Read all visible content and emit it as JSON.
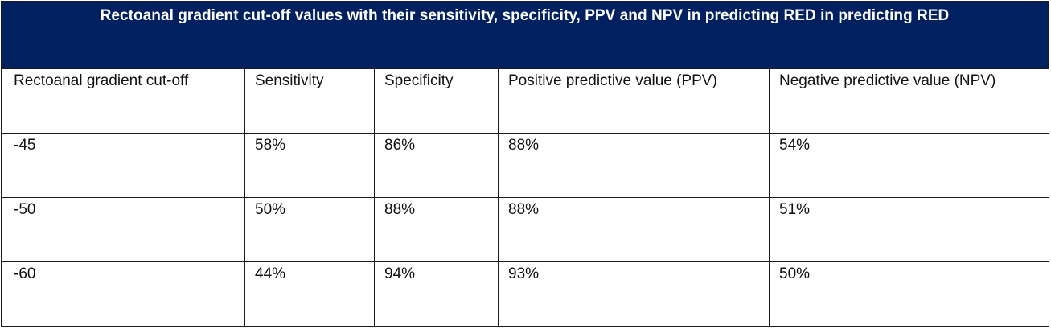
{
  "title": "Rectoanal gradient cut-off values with their sensitivity, specificity, PPV and NPV in predicting RED in predicting RED",
  "table": {
    "headers": [
      "Rectoanal gradient cut-off",
      "Sensitivity",
      "Specificity",
      "Positive predictive value (PPV)",
      "Negative predictive value (NPV)"
    ],
    "rows": [
      [
        "-45",
        "58%",
        "86%",
        "88%",
        "54%"
      ],
      [
        "-50",
        "50%",
        "88%",
        "88%",
        "51%"
      ],
      [
        "-60",
        "44%",
        "94%",
        "93%",
        "50%"
      ]
    ]
  },
  "colors": {
    "title_background": "#002060",
    "title_text": "#ffffff",
    "border": "#1a1a1a"
  }
}
